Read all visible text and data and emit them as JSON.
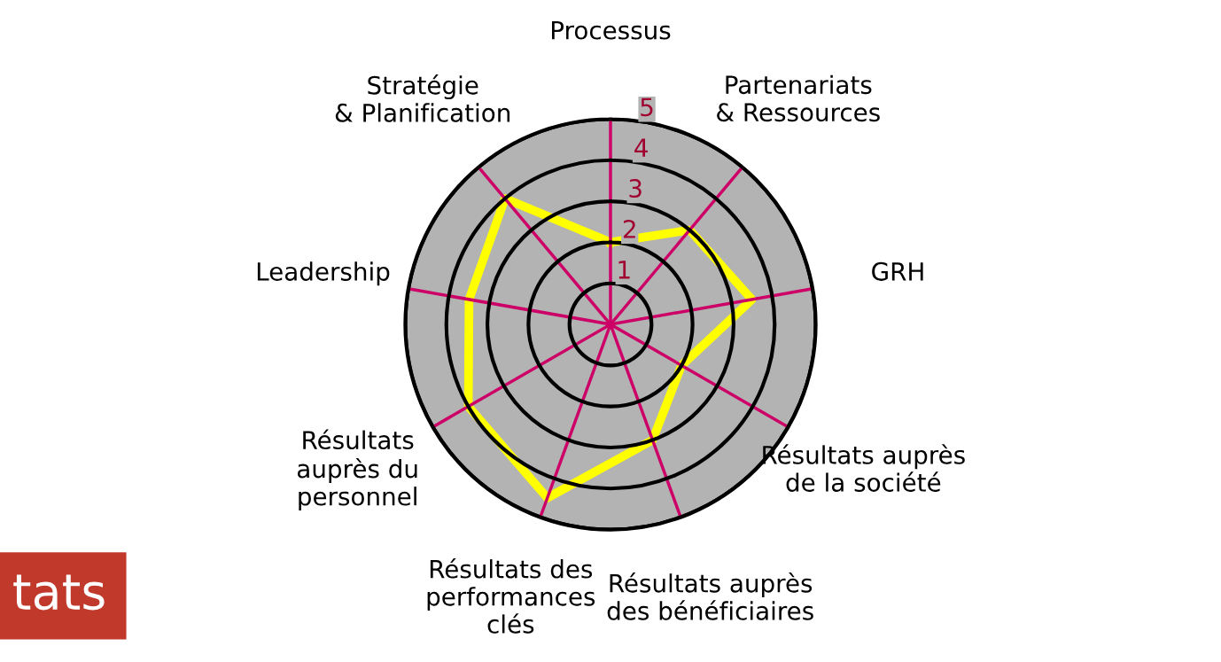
{
  "chart_data": {
    "type": "radar",
    "categories": [
      "Processus",
      "Partenariats\n& Ressources",
      "GRH",
      "Résultats auprès\nde la société",
      "Résultats auprès\ndes bénéficiaires",
      "Résultats des\nperformances\nclés",
      "Résultats\nauprès du\npersonnel",
      "Leadership",
      "Stratégie\n& Planification"
    ],
    "series": [
      {
        "color": "#ffff00",
        "values": [
          2,
          3,
          3.5,
          2,
          3,
          4.5,
          4,
          3.5,
          4
        ]
      }
    ],
    "ylim": [
      0,
      5
    ],
    "yticks": [
      1,
      2,
      3,
      4,
      5
    ],
    "grid": true,
    "annotations": [
      "tats"
    ]
  }
}
